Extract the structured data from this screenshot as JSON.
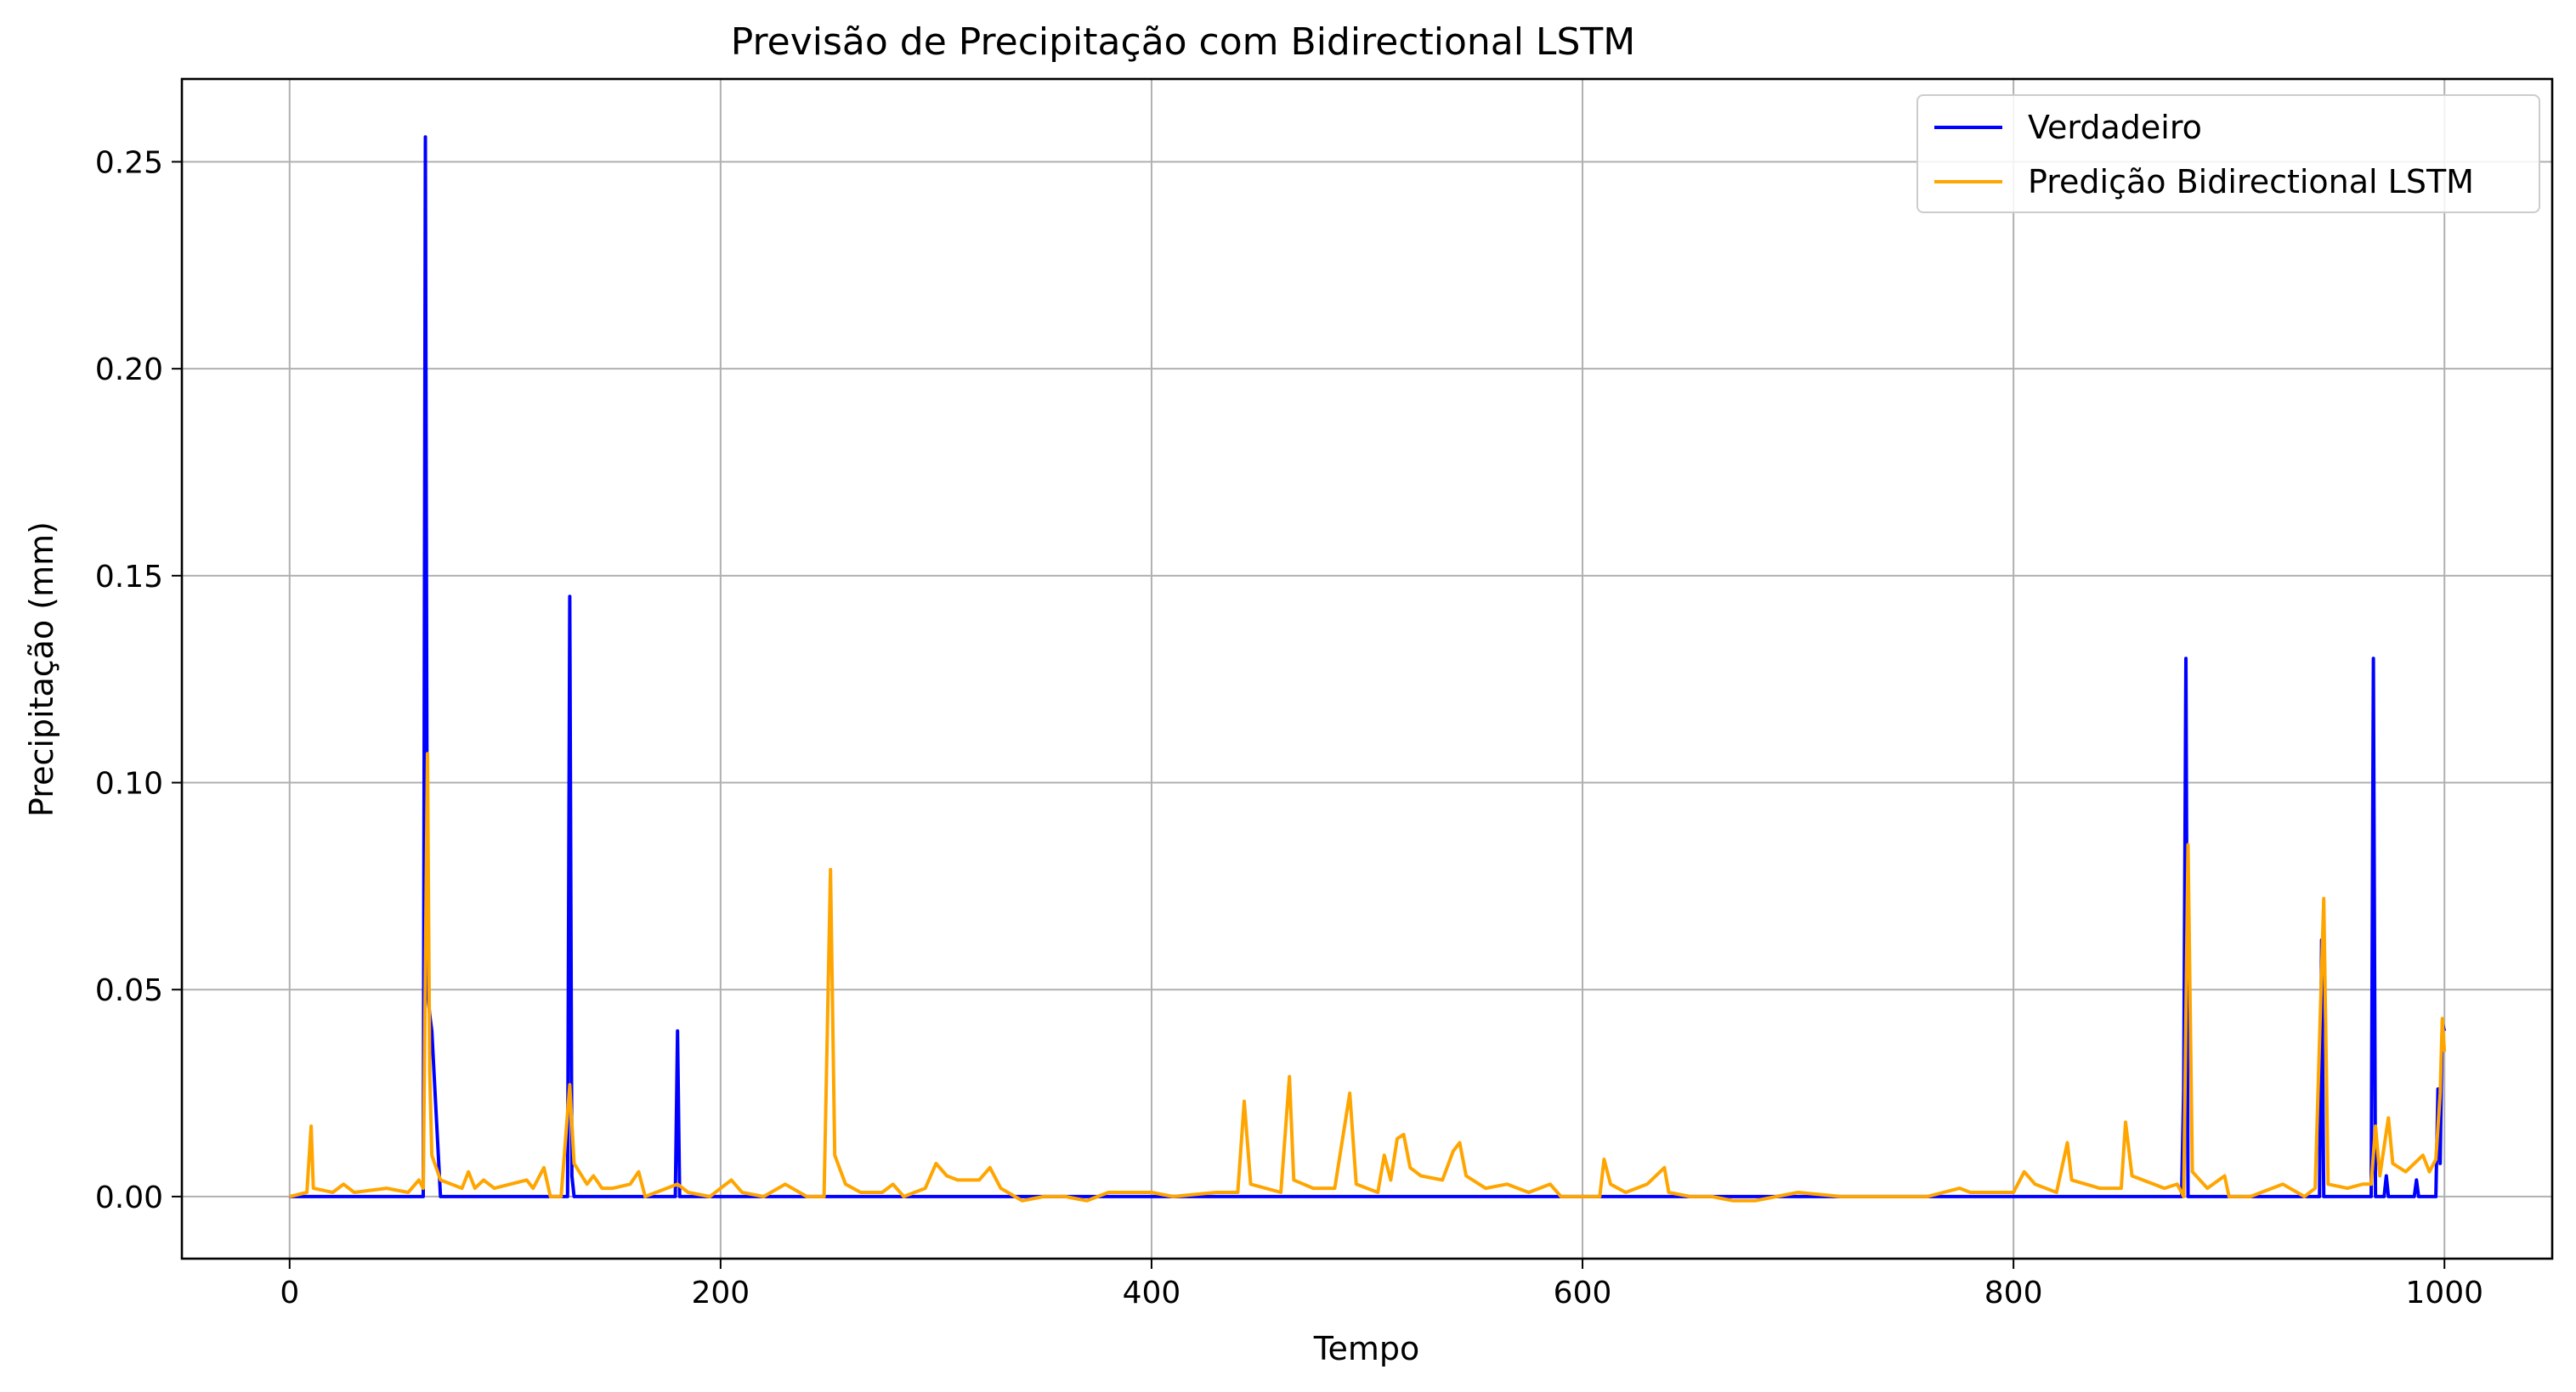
{
  "chart_data": {
    "type": "line",
    "title": "Previsão de Precipitação com Bidirectional LSTM",
    "xlabel": "Tempo",
    "ylabel": "Precipitação (mm)",
    "xlim": [
      -50,
      1050
    ],
    "ylim": [
      -0.015,
      0.27
    ],
    "xticks": [
      0,
      200,
      400,
      600,
      800,
      1000
    ],
    "xtick_labels": [
      "0",
      "200",
      "400",
      "600",
      "800",
      "1000"
    ],
    "yticks": [
      0.0,
      0.05,
      0.1,
      0.15,
      0.2,
      0.25
    ],
    "ytick_labels": [
      "0.00",
      "0.05",
      "0.10",
      "0.15",
      "0.20",
      "0.25"
    ],
    "grid": true,
    "legend_position": "top-right",
    "series": [
      {
        "name": "Verdadeiro",
        "color": "#0000ff",
        "points": [
          [
            0,
            0.0
          ],
          [
            62,
            0.0
          ],
          [
            63,
            0.256
          ],
          [
            64,
            0.05
          ],
          [
            65,
            0.044
          ],
          [
            66,
            0.04
          ],
          [
            70,
            0.0
          ],
          [
            129,
            0.0
          ],
          [
            130,
            0.145
          ],
          [
            131,
            0.005
          ],
          [
            132,
            0.0
          ],
          [
            179,
            0.0
          ],
          [
            180,
            0.04
          ],
          [
            181,
            0.0
          ],
          [
            878,
            0.0
          ],
          [
            879,
            0.026
          ],
          [
            880,
            0.13
          ],
          [
            881,
            0.0
          ],
          [
            942,
            0.0
          ],
          [
            943,
            0.062
          ],
          [
            944,
            0.0
          ],
          [
            966,
            0.0
          ],
          [
            967,
            0.13
          ],
          [
            968,
            0.0
          ],
          [
            972,
            0.0
          ],
          [
            973,
            0.005
          ],
          [
            974,
            0.0
          ],
          [
            986,
            0.0
          ],
          [
            987,
            0.004
          ],
          [
            988,
            0.0
          ],
          [
            996,
            0.0
          ],
          [
            997,
            0.026
          ],
          [
            998,
            0.008
          ],
          [
            999,
            0.042
          ],
          [
            1000,
            0.04
          ]
        ]
      },
      {
        "name": "Predição Bidirectional LSTM",
        "color": "#ffa500",
        "points": [
          [
            0,
            0.0
          ],
          [
            8,
            0.001
          ],
          [
            10,
            0.017
          ],
          [
            11,
            0.002
          ],
          [
            20,
            0.001
          ],
          [
            25,
            0.003
          ],
          [
            30,
            0.001
          ],
          [
            45,
            0.002
          ],
          [
            55,
            0.001
          ],
          [
            60,
            0.004
          ],
          [
            62,
            0.002
          ],
          [
            64,
            0.107
          ],
          [
            65,
            0.03
          ],
          [
            66,
            0.01
          ],
          [
            70,
            0.004
          ],
          [
            80,
            0.002
          ],
          [
            83,
            0.006
          ],
          [
            86,
            0.002
          ],
          [
            90,
            0.004
          ],
          [
            95,
            0.002
          ],
          [
            110,
            0.004
          ],
          [
            113,
            0.002
          ],
          [
            118,
            0.007
          ],
          [
            121,
            0.0
          ],
          [
            126,
            0.0
          ],
          [
            130,
            0.027
          ],
          [
            132,
            0.008
          ],
          [
            138,
            0.003
          ],
          [
            141,
            0.005
          ],
          [
            145,
            0.002
          ],
          [
            150,
            0.002
          ],
          [
            158,
            0.003
          ],
          [
            162,
            0.006
          ],
          [
            165,
            0.0
          ],
          [
            180,
            0.003
          ],
          [
            185,
            0.001
          ],
          [
            195,
            0.0
          ],
          [
            205,
            0.004
          ],
          [
            210,
            0.001
          ],
          [
            220,
            0.0
          ],
          [
            230,
            0.003
          ],
          [
            240,
            0.0
          ],
          [
            248,
            0.0
          ],
          [
            251,
            0.079
          ],
          [
            253,
            0.01
          ],
          [
            258,
            0.003
          ],
          [
            265,
            0.001
          ],
          [
            275,
            0.001
          ],
          [
            280,
            0.003
          ],
          [
            285,
            0.0
          ],
          [
            295,
            0.002
          ],
          [
            300,
            0.008
          ],
          [
            305,
            0.005
          ],
          [
            310,
            0.004
          ],
          [
            320,
            0.004
          ],
          [
            325,
            0.007
          ],
          [
            330,
            0.002
          ],
          [
            340,
            -0.001
          ],
          [
            350,
            0.0
          ],
          [
            360,
            0.0
          ],
          [
            370,
            -0.001
          ],
          [
            380,
            0.001
          ],
          [
            390,
            0.001
          ],
          [
            400,
            0.001
          ],
          [
            410,
            0.0
          ],
          [
            430,
            0.001
          ],
          [
            440,
            0.001
          ],
          [
            443,
            0.023
          ],
          [
            446,
            0.003
          ],
          [
            460,
            0.001
          ],
          [
            464,
            0.029
          ],
          [
            466,
            0.004
          ],
          [
            475,
            0.002
          ],
          [
            485,
            0.002
          ],
          [
            492,
            0.025
          ],
          [
            495,
            0.003
          ],
          [
            505,
            0.001
          ],
          [
            508,
            0.01
          ],
          [
            511,
            0.004
          ],
          [
            514,
            0.014
          ],
          [
            517,
            0.015
          ],
          [
            520,
            0.007
          ],
          [
            525,
            0.005
          ],
          [
            535,
            0.004
          ],
          [
            540,
            0.011
          ],
          [
            543,
            0.013
          ],
          [
            546,
            0.005
          ],
          [
            555,
            0.002
          ],
          [
            565,
            0.003
          ],
          [
            575,
            0.001
          ],
          [
            585,
            0.003
          ],
          [
            590,
            0.0
          ],
          [
            600,
            0.0
          ],
          [
            608,
            0.0
          ],
          [
            610,
            0.009
          ],
          [
            613,
            0.003
          ],
          [
            620,
            0.001
          ],
          [
            630,
            0.003
          ],
          [
            638,
            0.007
          ],
          [
            640,
            0.001
          ],
          [
            650,
            0.0
          ],
          [
            660,
            0.0
          ],
          [
            670,
            -0.001
          ],
          [
            680,
            -0.001
          ],
          [
            690,
            0.0
          ],
          [
            700,
            0.001
          ],
          [
            720,
            0.0
          ],
          [
            740,
            0.0
          ],
          [
            760,
            0.0
          ],
          [
            775,
            0.002
          ],
          [
            780,
            0.001
          ],
          [
            790,
            0.001
          ],
          [
            800,
            0.001
          ],
          [
            805,
            0.006
          ],
          [
            810,
            0.003
          ],
          [
            820,
            0.001
          ],
          [
            825,
            0.013
          ],
          [
            827,
            0.004
          ],
          [
            840,
            0.002
          ],
          [
            850,
            0.002
          ],
          [
            852,
            0.018
          ],
          [
            855,
            0.005
          ],
          [
            870,
            0.002
          ],
          [
            876,
            0.003
          ],
          [
            879,
            0.0
          ],
          [
            881,
            0.085
          ],
          [
            883,
            0.006
          ],
          [
            890,
            0.002
          ],
          [
            898,
            0.005
          ],
          [
            900,
            0.0
          ],
          [
            910,
            0.0
          ],
          [
            920,
            0.002
          ],
          [
            925,
            0.003
          ],
          [
            935,
            0.0
          ],
          [
            940,
            0.002
          ],
          [
            944,
            0.072
          ],
          [
            946,
            0.003
          ],
          [
            955,
            0.002
          ],
          [
            962,
            0.003
          ],
          [
            966,
            0.003
          ],
          [
            968,
            0.017
          ],
          [
            970,
            0.005
          ],
          [
            972,
            0.012
          ],
          [
            974,
            0.019
          ],
          [
            976,
            0.008
          ],
          [
            982,
            0.006
          ],
          [
            990,
            0.01
          ],
          [
            993,
            0.006
          ],
          [
            996,
            0.009
          ],
          [
            998,
            0.025
          ],
          [
            999,
            0.043
          ],
          [
            1000,
            0.035
          ]
        ]
      }
    ]
  }
}
